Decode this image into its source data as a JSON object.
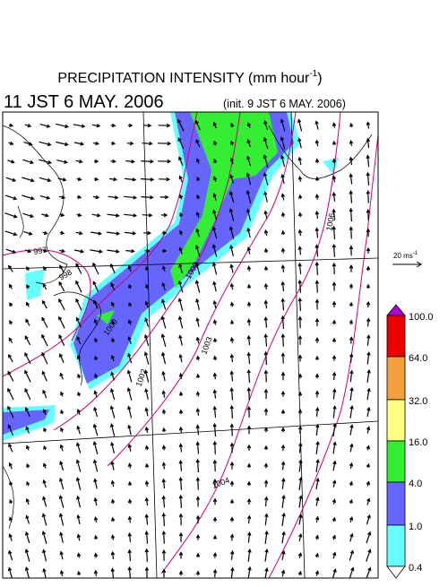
{
  "header": {
    "title": "PRECIPITATION INTENSITY (mm hour",
    "title_exponent": "-1",
    "title_close": ")",
    "valid_time": "11 JST 6 MAY. 2006",
    "init_time": "(init. 9 JST 6 MAY. 2006)"
  },
  "wind_scale": {
    "label": "20 ms",
    "exponent": "-1"
  },
  "colorbar": {
    "labels": [
      "100.0",
      "64.0",
      "32.0",
      "16.0",
      "4.0",
      "1.0",
      "0.4"
    ]
  },
  "contour_labels": [
    "997",
    "998",
    "1000",
    "1000",
    "1002",
    "1003",
    "1004",
    "1006"
  ]
}
